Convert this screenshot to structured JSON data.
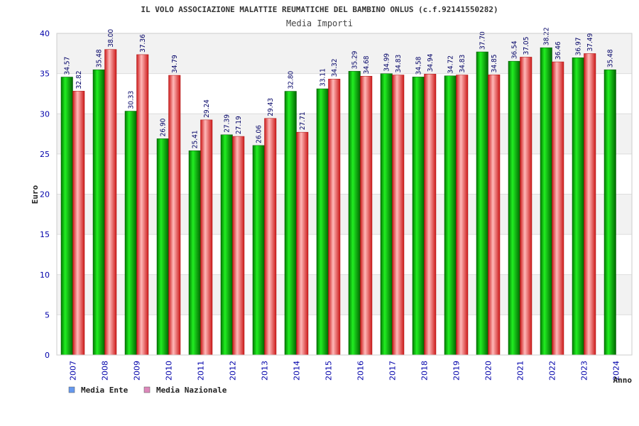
{
  "chart_data": {
    "type": "bar",
    "title": "IL VOLO ASSOCIAZIONE MALATTIE REUMATICHE DEL BAMBINO ONLUS (c.f.92141550282)",
    "subtitle": "Media Importi",
    "xlabel": "Anno",
    "ylabel": "Euro",
    "ylim": [
      0,
      40
    ],
    "yticks": [
      0,
      5,
      10,
      15,
      20,
      25,
      30,
      35,
      40
    ],
    "grid": true,
    "legend_position": "bottom-left",
    "categories": [
      "2007",
      "2008",
      "2009",
      "2010",
      "2011",
      "2012",
      "2013",
      "2014",
      "2015",
      "2016",
      "2017",
      "2018",
      "2019",
      "2020",
      "2021",
      "2022",
      "2023",
      "2024"
    ],
    "series": [
      {
        "name": "Media Ente",
        "color": "#00aa00",
        "legend_color": "#6699ee",
        "values": [
          34.57,
          35.48,
          30.33,
          26.9,
          25.41,
          27.39,
          26.06,
          32.8,
          33.11,
          35.29,
          34.99,
          34.58,
          34.72,
          37.7,
          36.54,
          38.22,
          36.97,
          35.48
        ],
        "labels": [
          "34.57",
          "35.48",
          "30.33",
          "26.90",
          "25.41",
          "27.39",
          "26.06",
          "32.80",
          "33.11",
          "35.29",
          "34.99",
          "34.58",
          "34.72",
          "37.70",
          "36.54",
          "38.22",
          "36.97",
          "35.48"
        ]
      },
      {
        "name": "Media Nazionale",
        "color": "#ee2222",
        "legend_color": "#dd88bb",
        "values": [
          32.82,
          38.0,
          37.36,
          34.79,
          29.24,
          27.19,
          29.43,
          27.71,
          34.32,
          34.68,
          34.83,
          34.94,
          34.83,
          34.85,
          37.05,
          36.46,
          37.49,
          null
        ],
        "labels": [
          "32.82",
          "38.00",
          "37.36",
          "34.79",
          "29.24",
          "27.19",
          "29.43",
          "27.71",
          "34.32",
          "34.68",
          "34.83",
          "34.94",
          "34.83",
          "34.85",
          "37.05",
          "36.46",
          "37.49",
          ""
        ]
      }
    ]
  }
}
